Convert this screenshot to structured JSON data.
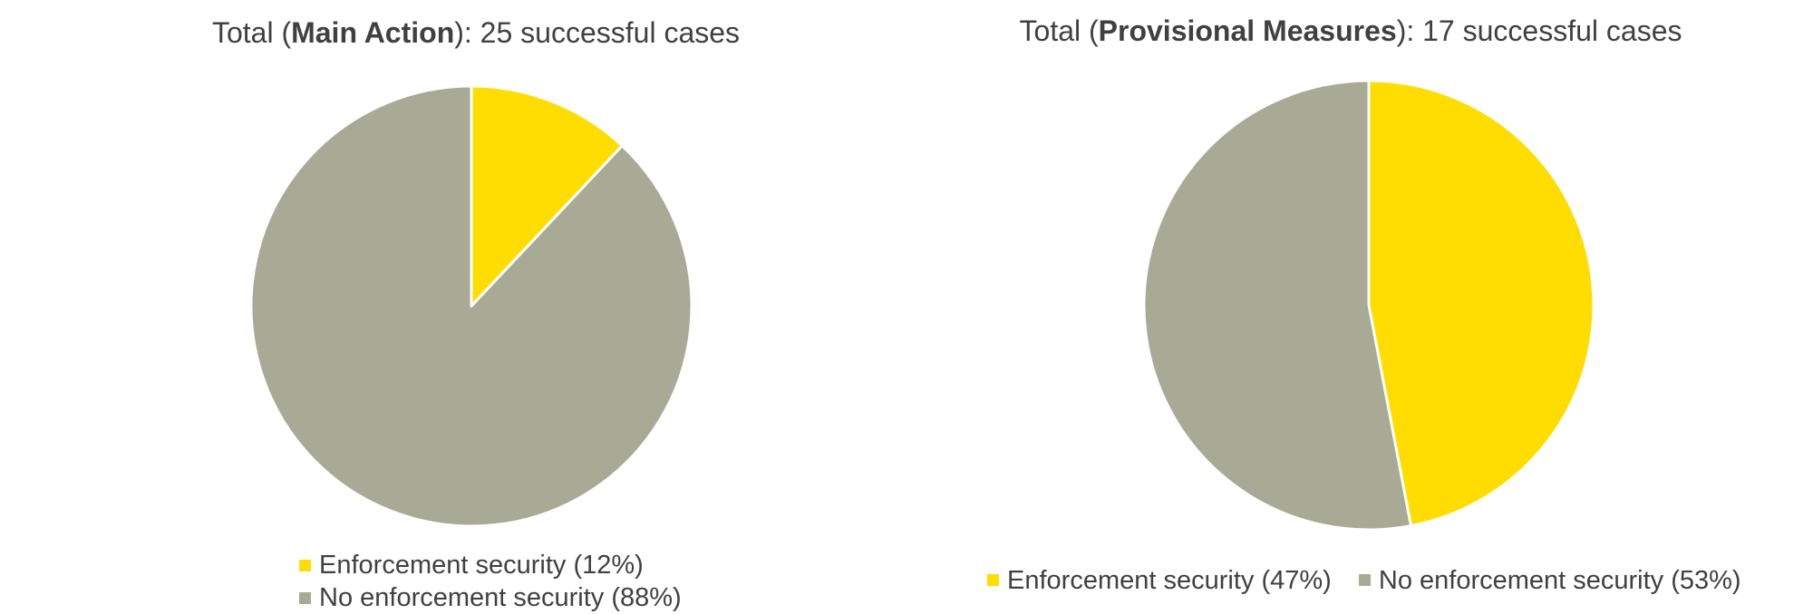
{
  "colors": {
    "enforcement": "#FFDD00",
    "no_enforcement": "#A8AA96",
    "separator": "#ffffff"
  },
  "chart_data": [
    {
      "type": "pie",
      "title": {
        "prefix": "Total (",
        "bold": "Main Action",
        "suffix": "): 25 successful cases"
      },
      "slices": [
        {
          "label": "Enforcement security",
          "value": 12,
          "color": "#FFDD00"
        },
        {
          "label": "No enforcement security",
          "value": 88,
          "color": "#A8AA96"
        }
      ],
      "legend": {
        "position": "bottom",
        "items": [
          "Enforcement security (12%)",
          "No enforcement security (88%)"
        ]
      }
    },
    {
      "type": "pie",
      "title": {
        "prefix": "Total (",
        "bold": "Provisional Measures",
        "suffix": "): 17 successful cases"
      },
      "slices": [
        {
          "label": "Enforcement security",
          "value": 47,
          "color": "#FFDD00"
        },
        {
          "label": "No enforcement security",
          "value": 53,
          "color": "#A8AA96"
        }
      ],
      "legend": {
        "position": "bottom",
        "items": [
          "Enforcement security (47%)",
          "No enforcement security (53%)"
        ]
      }
    }
  ]
}
